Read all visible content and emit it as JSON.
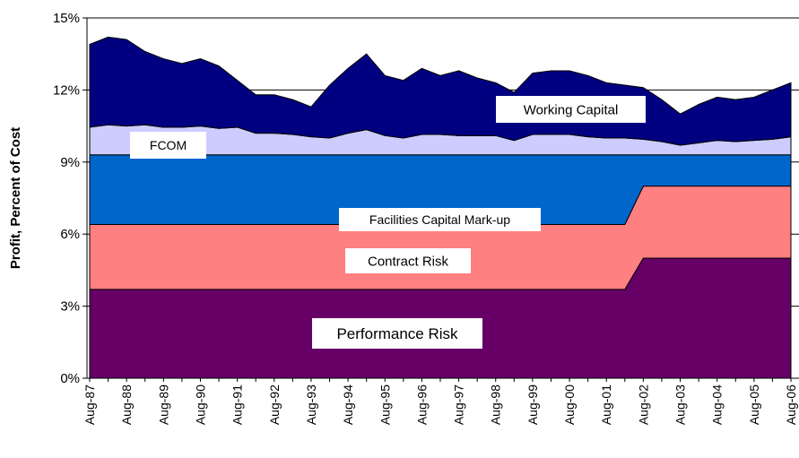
{
  "chart_data": {
    "type": "stacked_area",
    "y_label": "Profit, Percent of Cost",
    "categories": [
      "Aug-87",
      null,
      "Aug-88",
      null,
      "Aug-89",
      null,
      "Aug-90",
      null,
      "Aug-91",
      null,
      "Aug-92",
      null,
      "Aug-93",
      null,
      "Aug-94",
      null,
      "Aug-95",
      null,
      "Aug-96",
      null,
      "Aug-97",
      null,
      "Aug-98",
      null,
      "Aug-99",
      null,
      "Aug-00",
      null,
      "Aug-01",
      null,
      "Aug-02",
      null,
      "Aug-03",
      null,
      "Aug-04",
      null,
      "Aug-05",
      null,
      "Aug-06"
    ],
    "series": [
      {
        "name": "Performance Risk",
        "color": "#660066",
        "values": [
          3.7,
          3.7,
          3.7,
          3.7,
          3.7,
          3.7,
          3.7,
          3.7,
          3.7,
          3.7,
          3.7,
          3.7,
          3.7,
          3.7,
          3.7,
          3.7,
          3.7,
          3.7,
          3.7,
          3.7,
          3.7,
          3.7,
          3.7,
          3.7,
          3.7,
          3.7,
          3.7,
          3.7,
          3.7,
          3.7,
          5.0,
          5.0,
          5.0,
          5.0,
          5.0,
          5.0,
          5.0,
          5.0,
          5.0
        ]
      },
      {
        "name": "Contract Risk",
        "color": "#ff8080",
        "values": [
          2.7,
          2.7,
          2.7,
          2.7,
          2.7,
          2.7,
          2.7,
          2.7,
          2.7,
          2.7,
          2.7,
          2.7,
          2.7,
          2.7,
          2.7,
          2.7,
          2.7,
          2.7,
          2.7,
          2.7,
          2.7,
          2.7,
          2.7,
          2.7,
          2.7,
          2.7,
          2.7,
          2.7,
          2.7,
          2.7,
          3.0,
          3.0,
          3.0,
          3.0,
          3.0,
          3.0,
          3.0,
          3.0,
          3.0
        ]
      },
      {
        "name": "Facilities Capital Mark-up",
        "color": "#0066cc",
        "values": [
          2.9,
          2.9,
          2.9,
          2.9,
          2.9,
          2.9,
          2.9,
          2.9,
          2.9,
          2.9,
          2.9,
          2.9,
          2.9,
          2.9,
          2.9,
          2.9,
          2.9,
          2.9,
          2.9,
          2.9,
          2.9,
          2.9,
          2.9,
          2.9,
          2.9,
          2.9,
          2.9,
          2.9,
          2.9,
          2.9,
          1.3,
          1.3,
          1.3,
          1.3,
          1.3,
          1.3,
          1.3,
          1.3,
          1.3
        ]
      },
      {
        "name": "FCOM",
        "color": "#ccccff",
        "values": [
          1.15,
          1.25,
          1.2,
          1.25,
          1.15,
          1.15,
          1.2,
          1.1,
          1.15,
          0.9,
          0.9,
          0.85,
          0.75,
          0.7,
          0.9,
          1.05,
          0.8,
          0.7,
          0.85,
          0.85,
          0.8,
          0.8,
          0.8,
          0.6,
          0.85,
          0.85,
          0.85,
          0.75,
          0.7,
          0.7,
          0.65,
          0.55,
          0.4,
          0.5,
          0.6,
          0.55,
          0.6,
          0.65,
          0.75
        ]
      },
      {
        "name": "Working Capital",
        "color": "#000080",
        "values": [
          3.45,
          3.65,
          3.6,
          3.05,
          2.85,
          2.65,
          2.8,
          2.6,
          1.95,
          1.6,
          1.6,
          1.45,
          1.25,
          2.2,
          2.7,
          3.15,
          2.5,
          2.4,
          2.75,
          2.45,
          2.7,
          2.4,
          2.2,
          2.0,
          2.55,
          2.65,
          2.65,
          2.55,
          2.3,
          2.2,
          2.15,
          1.75,
          1.3,
          1.6,
          1.8,
          1.75,
          1.8,
          2.05,
          2.25
        ]
      }
    ],
    "ylim": [
      0,
      15
    ],
    "yticks": [
      {
        "value": 0,
        "label": "0%"
      },
      {
        "value": 3,
        "label": "3%"
      },
      {
        "value": 6,
        "label": "6%"
      },
      {
        "value": 9,
        "label": "9%"
      },
      {
        "value": 12,
        "label": "12%"
      },
      {
        "value": 15,
        "label": "15%"
      }
    ],
    "grid": true
  }
}
